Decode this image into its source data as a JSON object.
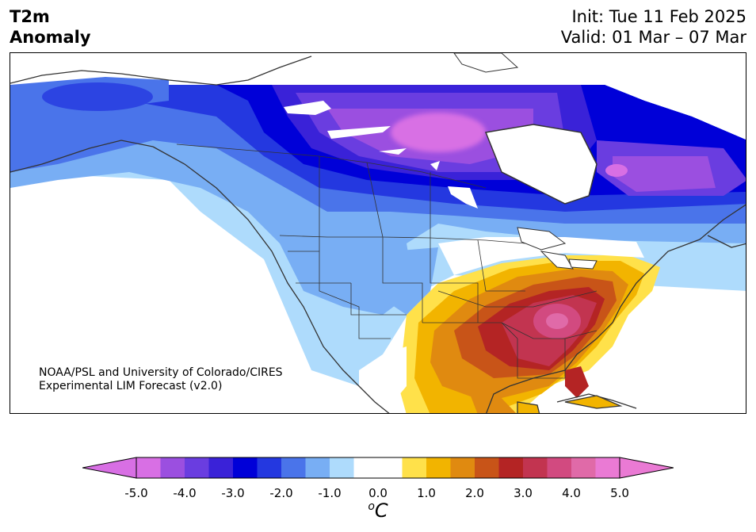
{
  "header": {
    "title_line1": "T2m",
    "title_line2": "Anomaly",
    "init": "Init: Tue 11 Feb 2025",
    "valid": "Valid: 01 Mar – 07 Mar"
  },
  "credit": {
    "line1": "NOAA/PSL and University of Colorado/CIRES",
    "line2": "Experimental LIM Forecast (v2.0)"
  },
  "colorbar": {
    "unit_sup": "o",
    "unit": "C",
    "ticks": [
      "-5.0",
      "-4.0",
      "-3.0",
      "-2.0",
      "-1.0",
      "0.0",
      "1.0",
      "2.0",
      "3.0",
      "4.0",
      "5.0"
    ],
    "colors": [
      "#d86fe4",
      "#9b4fe0",
      "#6a3de0",
      "#3a22d8",
      "#0000d8",
      "#2438e0",
      "#4a74ea",
      "#78aef4",
      "#aedbfc",
      "#ffffff",
      "#ffffff",
      "#ffe14a",
      "#f2b400",
      "#e08a10",
      "#c85418",
      "#b42424",
      "#c23450",
      "#d24a80",
      "#e06aa8",
      "#ea7ad4"
    ],
    "under_color": "#d86fe4",
    "over_color": "#ea7ad4"
  },
  "map": {
    "region": "North America",
    "cold_anomaly_center": "Hudson Bay / central Canada",
    "warm_anomaly_center": "Southeastern United States"
  }
}
